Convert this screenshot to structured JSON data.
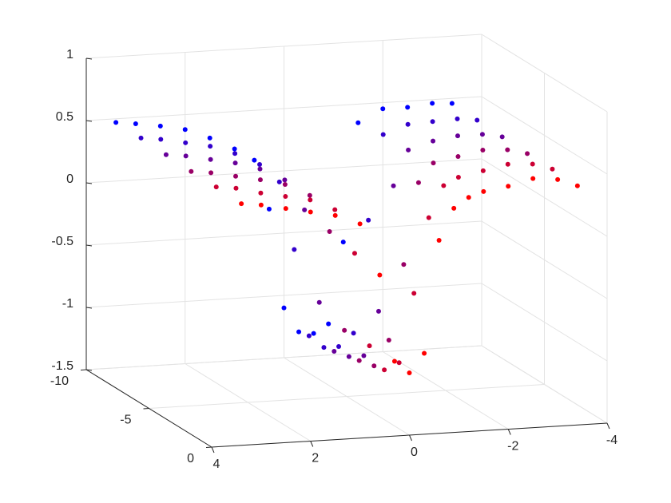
{
  "chart_data": {
    "type": "scatter3d",
    "xlim": [
      -4,
      4
    ],
    "ylim": [
      -10,
      0
    ],
    "zlim": [
      -1.5,
      1
    ],
    "xticks": [
      -4,
      -2,
      0,
      2,
      4
    ],
    "yticks": [
      -10,
      -5,
      0
    ],
    "zticks": [
      -1.5,
      -1,
      -0.5,
      0,
      0.5,
      1
    ],
    "grid": true,
    "x": [
      3.4,
      3,
      2.5,
      2,
      1.5,
      1,
      0.6,
      0.3,
      0,
      -0.3,
      -0.6,
      -0.9,
      -1.2,
      -1.5,
      -2,
      -2.5,
      -3,
      -3.4
    ],
    "series": [
      {
        "y": -10,
        "color": "#0000ff",
        "z": [
          0.47,
          0.45,
          0.42,
          0.38,
          0.3,
          0.2,
          0.1,
          -0.3,
          -1.1,
          -1.3,
          -1.32,
          -1.25,
          -0.6,
          0.35,
          0.45,
          0.45,
          0.47,
          0.46
        ]
      },
      {
        "y": -8,
        "color": "#3300cc",
        "z": [
          0.47,
          0.45,
          0.41,
          0.37,
          0.3,
          0.2,
          0.05,
          -0.5,
          -1.2,
          -1.3,
          -1.3,
          -1.2,
          -0.3,
          0.38,
          0.45,
          0.46,
          0.47,
          0.45
        ]
      },
      {
        "y": -6,
        "color": "#660099",
        "z": [
          0.46,
          0.44,
          0.4,
          0.36,
          0.3,
          0.2,
          -0.05,
          -0.8,
          -1.2,
          -1.25,
          -1.25,
          -0.9,
          0.1,
          0.38,
          0.44,
          0.47,
          0.47,
          0.44
        ]
      },
      {
        "y": -4,
        "color": "#990066",
        "z": [
          0.45,
          0.43,
          0.39,
          0.35,
          0.3,
          0.2,
          -0.1,
          -0.9,
          -1.15,
          -1.2,
          -1.0,
          -0.4,
          0.25,
          0.4,
          0.44,
          0.48,
          0.47,
          0.43
        ]
      },
      {
        "y": -2,
        "color": "#cc0033",
        "z": [
          0.45,
          0.43,
          0.38,
          0.34,
          0.3,
          0.21,
          -0.15,
          -0.9,
          -1.1,
          -1.05,
          -0.5,
          0.1,
          0.35,
          0.41,
          0.45,
          0.49,
          0.48,
          0.43
        ]
      },
      {
        "y": 0,
        "color": "#ff0000",
        "z": [
          0.44,
          0.42,
          0.38,
          0.34,
          0.3,
          0.22,
          -0.2,
          -0.9,
          -1.0,
          -0.85,
          0.05,
          0.3,
          0.38,
          0.42,
          0.45,
          0.5,
          0.48,
          0.42
        ]
      }
    ]
  }
}
